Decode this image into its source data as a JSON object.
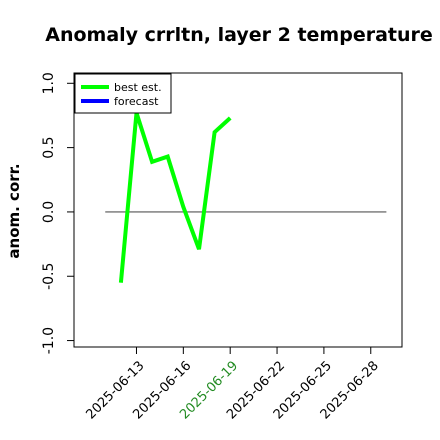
{
  "chart_data": {
    "type": "line",
    "title": "Anomaly crrltn, layer 2 temperature",
    "xlabel": "",
    "ylabel": "anom. corr.",
    "x_ticks": [
      "2025-06-13",
      "2025-06-16",
      "2025-06-19",
      "2025-06-22",
      "2025-06-25",
      "2025-06-28"
    ],
    "highlighted_tick": "2025-06-19",
    "highlight_color": "#228b22",
    "y_ticks": [
      "-1.0",
      "-0.5",
      "0.0",
      "0.5",
      "1.0"
    ],
    "xlim": [
      "2025-06-09",
      "2025-06-30"
    ],
    "ylim": [
      -1.05,
      1.08
    ],
    "reference_line_y": 0,
    "grid": false,
    "legend_position": "top-left",
    "series": [
      {
        "name": "best est.",
        "color": "#00ff00",
        "x": [
          "2025-06-12",
          "2025-06-13",
          "2025-06-14",
          "2025-06-15",
          "2025-06-16",
          "2025-06-17",
          "2025-06-18",
          "2025-06-19"
        ],
        "y": [
          -0.55,
          0.77,
          0.39,
          0.43,
          0.04,
          -0.29,
          0.62,
          0.73
        ]
      },
      {
        "name": "forecast",
        "color": "#0000ff",
        "x": [],
        "y": []
      }
    ]
  }
}
